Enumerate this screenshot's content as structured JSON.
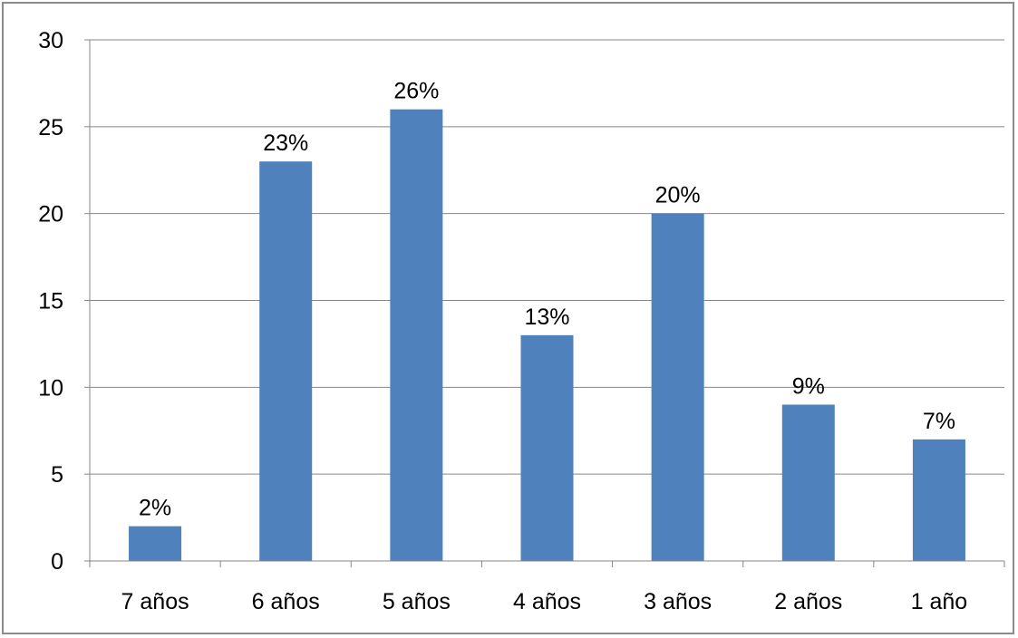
{
  "chart_data": {
    "type": "bar",
    "title": "",
    "xlabel": "",
    "ylabel": "",
    "categories": [
      "7 años",
      "6 años",
      "5 años",
      "4 años",
      "3 años",
      "2 años",
      "1 año"
    ],
    "values": [
      2,
      23,
      26,
      13,
      20,
      9,
      7
    ],
    "data_labels": [
      "2%",
      "23%",
      "26%",
      "13%",
      "20%",
      "9%",
      "7%"
    ],
    "ylim": [
      0,
      30
    ],
    "yticks": [
      0,
      5,
      10,
      15,
      20,
      25,
      30
    ],
    "grid": true,
    "legend": "none",
    "colors": {
      "bar": "#4f81bd",
      "grid": "#868686",
      "axis": "#868686",
      "frame": "#8c8c8c"
    }
  }
}
